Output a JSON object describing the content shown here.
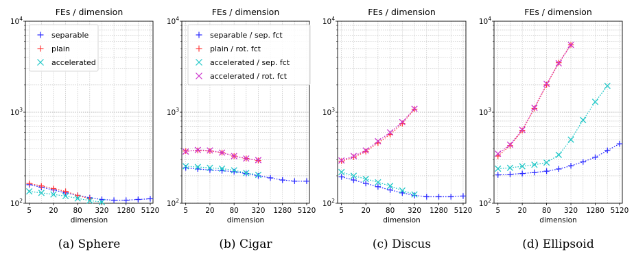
{
  "chart_data": [
    {
      "type": "scatter",
      "title": "FEs / dimension",
      "xlabel": "dimension",
      "ylabel": "",
      "xscale": "log",
      "yscale": "log",
      "xlim": [
        4,
        6000
      ],
      "ylim": [
        100,
        10000
      ],
      "xticks": [
        "5",
        "20",
        "80",
        "320",
        "1280",
        "5120"
      ],
      "yticks": [
        "10^2",
        "10^3",
        "10^4"
      ],
      "grid": true,
      "legend": "top-left",
      "caption": "(a) Sphere",
      "series": [
        {
          "name": "separable",
          "color": "#2b2bff",
          "marker": "plus",
          "style": "dotted",
          "x": [
            5,
            10,
            20,
            40,
            80,
            160,
            320,
            640,
            1280,
            2560,
            5120
          ],
          "y": [
            160,
            150,
            140,
            130,
            122,
            115,
            110,
            108,
            108,
            110,
            112
          ]
        },
        {
          "name": "plain",
          "color": "#ff3b3b",
          "marker": "plus",
          "style": "dotted",
          "x": [
            5,
            10,
            20,
            40,
            80,
            160
          ],
          "y": [
            165,
            155,
            145,
            135,
            122,
            112
          ]
        },
        {
          "name": "accelerated",
          "color": "#22c8c8",
          "marker": "x",
          "style": "dotted",
          "x": [
            5,
            10,
            20,
            40,
            80,
            160,
            320
          ],
          "y": [
            135,
            130,
            125,
            120,
            113,
            107,
            103
          ]
        }
      ]
    },
    {
      "type": "scatter",
      "title": "FEs / dimension",
      "xlabel": "dimension",
      "ylabel": "",
      "xscale": "log",
      "yscale": "log",
      "xlim": [
        4,
        6000
      ],
      "ylim": [
        100,
        10000
      ],
      "xticks": [
        "5",
        "20",
        "80",
        "320",
        "1280",
        "5120"
      ],
      "yticks": [
        "10^2",
        "10^3",
        "10^4"
      ],
      "grid": true,
      "legend": "top-right",
      "caption": "(b) Cigar",
      "series": [
        {
          "name": "separable / sep. fct",
          "color": "#2b2bff",
          "marker": "plus",
          "style": "dotted",
          "x": [
            5,
            10,
            20,
            40,
            80,
            160,
            320,
            640,
            1280,
            2560,
            5120
          ],
          "y": [
            245,
            238,
            232,
            228,
            222,
            212,
            200,
            190,
            180,
            175,
            175
          ]
        },
        {
          "name": "plain / rot. fct",
          "color": "#ff3b3b",
          "marker": "plus",
          "style": "dotted",
          "x": [
            5,
            10,
            20,
            40,
            80,
            160,
            320
          ],
          "y": [
            375,
            380,
            375,
            360,
            330,
            310,
            295
          ]
        },
        {
          "name": "accelerated / sep. fct",
          "color": "#22c8c8",
          "marker": "x",
          "style": "dotted",
          "x": [
            5,
            10,
            20,
            40,
            80,
            160,
            320
          ],
          "y": [
            255,
            250,
            245,
            240,
            230,
            215,
            205
          ]
        },
        {
          "name": "accelerated / rot. fct",
          "color": "#cc33cc",
          "marker": "x",
          "style": "dotted",
          "x": [
            5,
            10,
            20,
            40,
            80,
            160,
            320
          ],
          "y": [
            370,
            385,
            380,
            360,
            330,
            310,
            298
          ]
        }
      ]
    },
    {
      "type": "scatter",
      "title": "FEs / dimension",
      "xlabel": "dimension",
      "ylabel": "",
      "xscale": "log",
      "yscale": "log",
      "xlim": [
        4,
        6000
      ],
      "ylim": [
        100,
        10000
      ],
      "xticks": [
        "5",
        "20",
        "80",
        "320",
        "1280",
        "5120"
      ],
      "yticks": [
        "10^2",
        "10^3",
        "10^4"
      ],
      "grid": true,
      "legend": "none",
      "caption": "(c) Discus",
      "series": [
        {
          "name": "separable / sep. fct",
          "color": "#2b2bff",
          "marker": "plus",
          "style": "dotted",
          "x": [
            5,
            10,
            20,
            40,
            80,
            160,
            320,
            640,
            1280,
            2560,
            5120
          ],
          "y": [
            195,
            180,
            165,
            152,
            140,
            130,
            122,
            118,
            118,
            118,
            120
          ]
        },
        {
          "name": "plain / rot. fct",
          "color": "#ff3b3b",
          "marker": "plus",
          "style": "dotted",
          "x": [
            5,
            10,
            20,
            40,
            80,
            160,
            320
          ],
          "y": [
            290,
            320,
            370,
            460,
            570,
            750,
            1080
          ]
        },
        {
          "name": "accelerated / sep. fct",
          "color": "#22c8c8",
          "marker": "x",
          "style": "dotted",
          "x": [
            5,
            10,
            20,
            40,
            80,
            160,
            320
          ],
          "y": [
            220,
            200,
            185,
            170,
            155,
            138,
            125
          ]
        },
        {
          "name": "accelerated / rot. fct",
          "color": "#cc33cc",
          "marker": "x",
          "style": "dotted",
          "x": [
            5,
            10,
            20,
            40,
            80,
            160,
            320
          ],
          "y": [
            295,
            330,
            380,
            480,
            600,
            780,
            1090
          ]
        }
      ]
    },
    {
      "type": "scatter",
      "title": "FEs / dimension",
      "xlabel": "dimension",
      "ylabel": "",
      "xscale": "log",
      "yscale": "log",
      "xlim": [
        4,
        6000
      ],
      "ylim": [
        100,
        10000
      ],
      "xticks": [
        "5",
        "20",
        "80",
        "320",
        "1280",
        "5120"
      ],
      "yticks": [
        "10^2",
        "10^3",
        "10^4"
      ],
      "grid": true,
      "legend": "none",
      "caption": "(d) Ellipsoid",
      "series": [
        {
          "name": "separable / sep. fct",
          "color": "#2b2bff",
          "marker": "plus",
          "style": "dotted",
          "x": [
            5,
            10,
            20,
            40,
            80,
            160,
            320,
            640,
            1280,
            2560,
            5120
          ],
          "y": [
            205,
            208,
            212,
            218,
            225,
            238,
            258,
            285,
            320,
            380,
            450
          ]
        },
        {
          "name": "plain / rot. fct",
          "color": "#ff3b3b",
          "marker": "plus",
          "style": "dotted",
          "x": [
            5,
            10,
            20,
            40,
            80,
            160,
            320
          ],
          "y": [
            330,
            430,
            630,
            1100,
            2000,
            3500,
            5500
          ]
        },
        {
          "name": "accelerated / sep. fct",
          "color": "#22c8c8",
          "marker": "x",
          "style": "dotted",
          "x": [
            5,
            10,
            20,
            40,
            80,
            160,
            320,
            640,
            1280,
            2560
          ],
          "y": [
            240,
            245,
            255,
            265,
            280,
            340,
            500,
            820,
            1300,
            1950
          ]
        },
        {
          "name": "accelerated / rot. fct",
          "color": "#cc33cc",
          "marker": "x",
          "style": "dotted",
          "x": [
            5,
            10,
            20,
            40,
            80,
            160,
            320
          ],
          "y": [
            350,
            440,
            640,
            1120,
            2050,
            3450,
            5500
          ]
        }
      ]
    }
  ]
}
